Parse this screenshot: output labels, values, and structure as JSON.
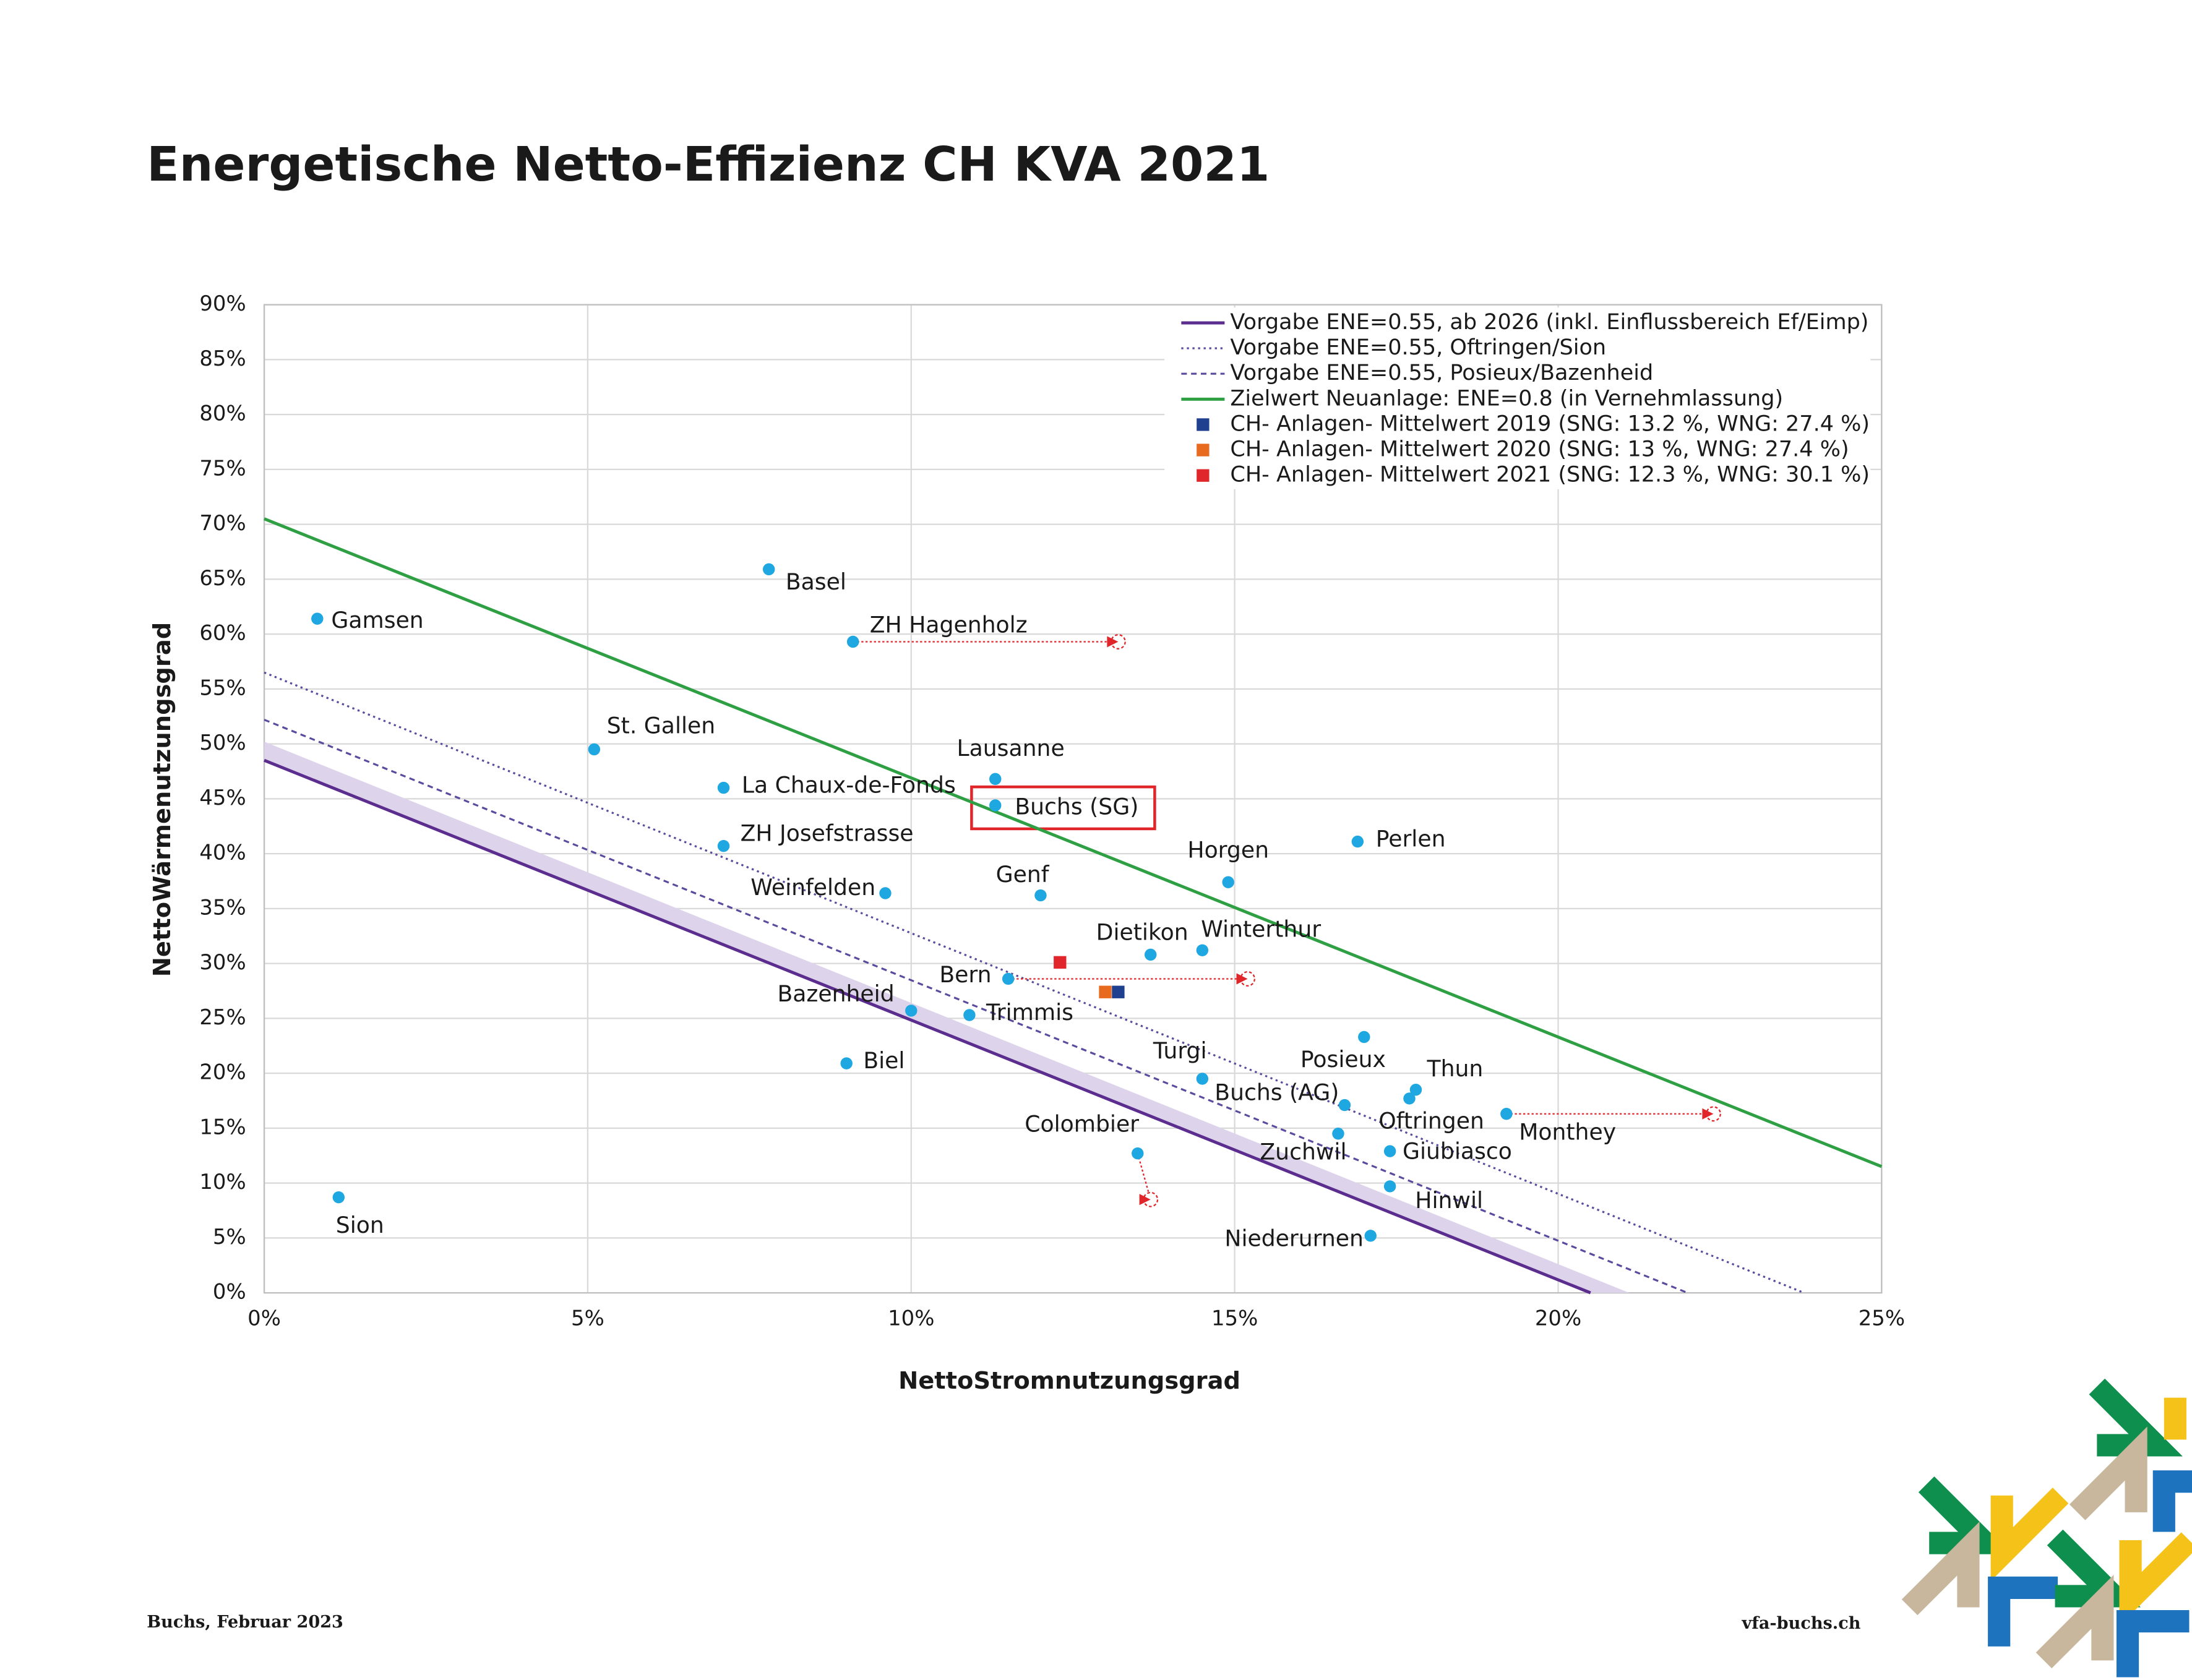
{
  "chart_data": {
    "type": "scatter",
    "title": "Energetische Netto-Effizienz CH KVA 2021",
    "xlabel": "NettoStromnutzungsgrad",
    "ylabel": "NettoWärmenutzungsgrad",
    "xlim": [
      0,
      25
    ],
    "ylim": [
      0,
      90
    ],
    "xticks": [
      {
        "value": 0,
        "label": "0%"
      },
      {
        "value": 5,
        "label": "5%"
      },
      {
        "value": 10,
        "label": "10%"
      },
      {
        "value": 15,
        "label": "15%"
      },
      {
        "value": 20,
        "label": "20%"
      },
      {
        "value": 25,
        "label": "25%"
      }
    ],
    "yticks": [
      {
        "value": 0,
        "label": "0%"
      },
      {
        "value": 5,
        "label": "5%"
      },
      {
        "value": 10,
        "label": "10%"
      },
      {
        "value": 15,
        "label": "15%"
      },
      {
        "value": 20,
        "label": "20%"
      },
      {
        "value": 25,
        "label": "25%"
      },
      {
        "value": 30,
        "label": "30%"
      },
      {
        "value": 35,
        "label": "35%"
      },
      {
        "value": 40,
        "label": "40%"
      },
      {
        "value": 45,
        "label": "45%"
      },
      {
        "value": 50,
        "label": "50%"
      },
      {
        "value": 55,
        "label": "55%"
      },
      {
        "value": 60,
        "label": "60%"
      },
      {
        "value": 65,
        "label": "65%"
      },
      {
        "value": 70,
        "label": "70%"
      },
      {
        "value": 75,
        "label": "75%"
      },
      {
        "value": 80,
        "label": "80%"
      },
      {
        "value": 85,
        "label": "85%"
      },
      {
        "value": 90,
        "label": "90%"
      }
    ],
    "grid": true,
    "legend": "upper right",
    "series": [
      {
        "name": "Vorgabe ENE=0.55, ab 2026 (inkl. Einflussbereich Ef/Eimp)",
        "color": "#5b2d8e",
        "style": "solid",
        "x": [
          0,
          20.5
        ],
        "values": [
          48.5,
          0
        ]
      },
      {
        "name": "Vorgabe ENE=0.55, Oftringen/Sion",
        "color": "#5b4a9e",
        "style": "dotted",
        "x": [
          0,
          23.8
        ],
        "values": [
          56.5,
          0
        ]
      },
      {
        "name": "Vorgabe ENE=0.55, Posieux/Bazenheid",
        "color": "#5b4a9e",
        "style": "dashed",
        "x": [
          0,
          22.0
        ],
        "values": [
          52.2,
          0
        ]
      },
      {
        "name": "Zielwert Neuanlage: ENE=0.8 (in Vernehmlassung)",
        "color": "#2ea043",
        "style": "solid",
        "x": [
          0,
          25
        ],
        "values": [
          70.5,
          11.5
        ]
      },
      {
        "name": "CH- Anlagen- Mittelwert 2019 (SNG: 13.2 %, WNG: 27.4 %)",
        "color": "#1f3f8f",
        "style": "square",
        "x": [
          13.2
        ],
        "values": [
          27.4
        ]
      },
      {
        "name": "CH- Anlagen- Mittelwert 2020 (SNG: 13 %, WNG: 27.4 %)",
        "color": "#e86a1e",
        "style": "square",
        "x": [
          13.0
        ],
        "values": [
          27.4
        ]
      },
      {
        "name": "CH- Anlagen- Mittelwert 2021 (SNG: 12.3 %, WNG: 30.1 %)",
        "color": "#e0262a",
        "style": "square",
        "x": [
          12.3
        ],
        "values": [
          30.1
        ]
      }
    ],
    "band": {
      "color": "#ddd3ea",
      "x": [
        0,
        21.1
      ],
      "values": [
        50.2,
        0
      ]
    },
    "plants": {
      "color": "#1ea7e1",
      "labels": [
        "Gamsen",
        "Basel",
        "ZH Hagenholz",
        "St. Gallen",
        "La Chaux-de-Fonds",
        "ZH Josefstrasse",
        "Weinfelden",
        "Lausanne",
        "Buchs (SG)",
        "Genf",
        "Horgen",
        "Perlen",
        "Dietikon",
        "Winterthur",
        "Bern",
        "Bazenheid",
        "Trimmis",
        "Biel",
        "Turgi",
        "Posieux",
        "Buchs (AG)",
        "Thun",
        "Oftringen",
        "Zuchwil",
        "Giubiasco",
        "Monthey",
        "Colombier",
        "Hinwil",
        "Niederurnen",
        "Sion"
      ],
      "x": [
        0.82,
        7.8,
        9.1,
        5.1,
        7.1,
        7.1,
        9.6,
        11.3,
        11.3,
        12.0,
        14.9,
        16.9,
        13.7,
        14.5,
        11.5,
        10.0,
        10.9,
        9.0,
        14.5,
        17.0,
        16.7,
        17.8,
        17.7,
        16.6,
        17.4,
        19.2,
        13.5,
        17.4,
        17.1,
        1.15
      ],
      "values": [
        61.4,
        65.9,
        59.3,
        49.5,
        46.0,
        40.7,
        36.4,
        46.8,
        44.4,
        36.2,
        37.4,
        41.1,
        30.8,
        31.2,
        28.6,
        25.7,
        25.3,
        20.9,
        19.5,
        23.3,
        17.1,
        18.5,
        17.7,
        14.5,
        12.9,
        16.3,
        12.7,
        9.7,
        5.2,
        8.7
      ]
    },
    "arrows": {
      "color": "#e0262a",
      "x": [
        9.1,
        11.5,
        19.2,
        13.5
      ],
      "values": [
        59.3,
        28.6,
        16.3,
        12.7
      ],
      "x_end": [
        13.2,
        15.2,
        22.4,
        13.7
      ],
      "values_end": [
        59.3,
        28.6,
        16.3,
        8.5
      ]
    },
    "footer_left": "Buchs, Februar 2023",
    "footer_right": "vfa-buchs.ch"
  }
}
